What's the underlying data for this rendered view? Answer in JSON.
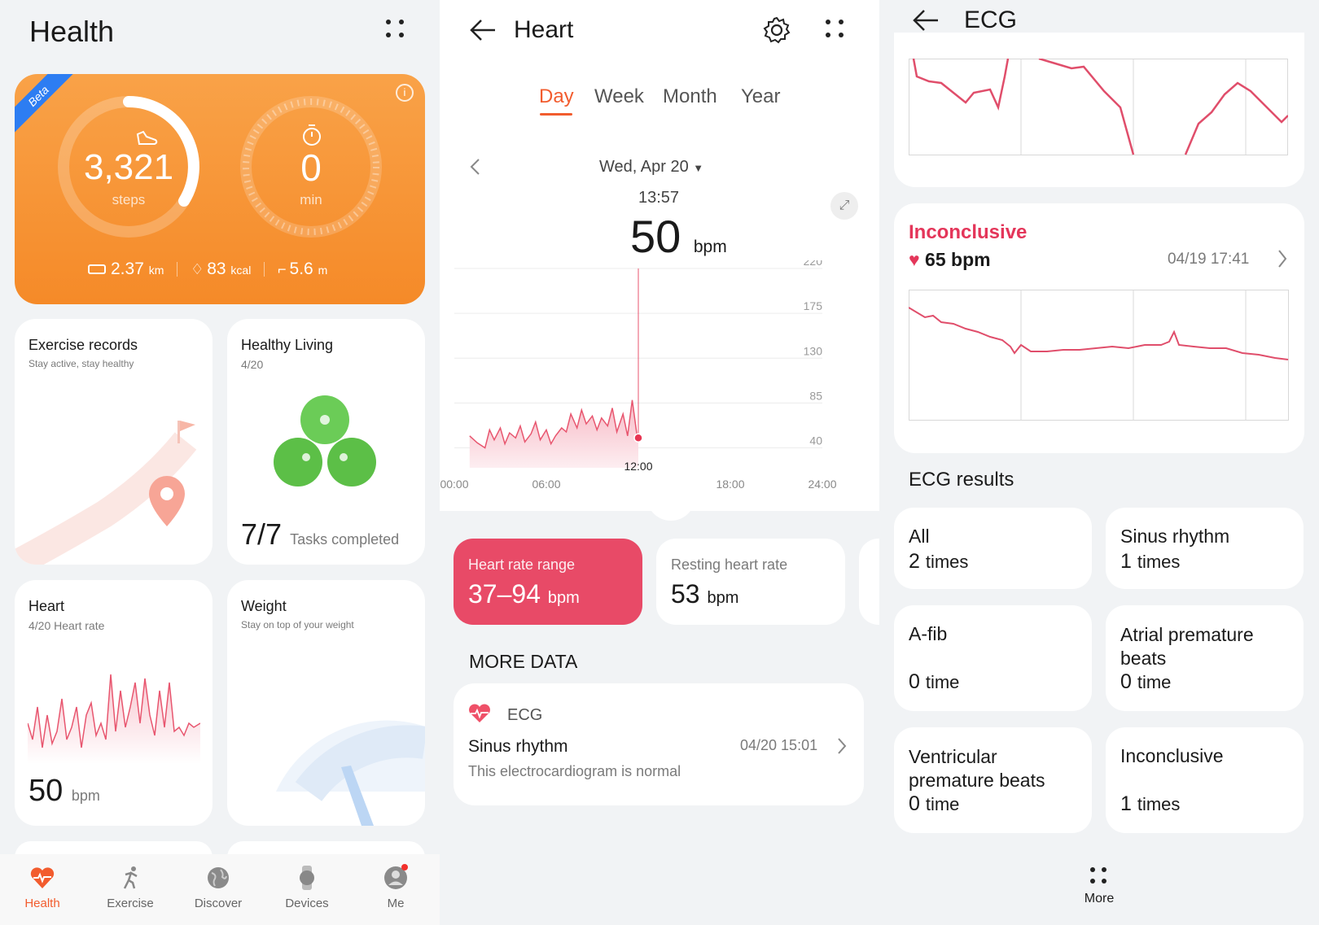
{
  "health": {
    "title": "Health",
    "beta": "Beta",
    "steps_value": "3,321",
    "steps_label": "steps",
    "min_value": "0",
    "min_label": "min",
    "distance_value": "2.37",
    "distance_unit": "km",
    "calories_value": "83",
    "calories_unit": "kcal",
    "floors_value": "5.6",
    "floors_unit": "m",
    "exercise_title": "Exercise records",
    "exercise_sub": "Stay active, stay healthy",
    "living_title": "Healthy Living",
    "living_date": "4/20",
    "tasks_value": "7/7",
    "tasks_label": "Tasks completed",
    "heart_title": "Heart",
    "heart_sub": "4/20 Heart rate",
    "heart_value": "50",
    "heart_unit": "bpm",
    "weight_title": "Weight",
    "weight_sub": "Stay on top of your weight",
    "nav": [
      {
        "label": "Health",
        "icon": "heart-icon"
      },
      {
        "label": "Exercise",
        "icon": "running-icon"
      },
      {
        "label": "Discover",
        "icon": "globe-icon"
      },
      {
        "label": "Devices",
        "icon": "watch-icon"
      },
      {
        "label": "Me",
        "icon": "profile-icon"
      }
    ],
    "accent": "#f7932b",
    "active_nav_color": "#f25c2e"
  },
  "heart": {
    "title": "Heart",
    "tabs": [
      "Day",
      "Week",
      "Month",
      "Year"
    ],
    "active_tab": "Day",
    "date": "Wed, Apr 20",
    "time": "13:57",
    "bpm_value": "50",
    "bpm_unit": "bpm",
    "range_title": "Heart rate range",
    "range_value": "37–94",
    "range_unit": "bpm",
    "resting_title": "Resting heart rate",
    "resting_value": "53",
    "resting_unit": "bpm",
    "more_data": "MORE DATA",
    "ecg_label": "ECG",
    "ecg_result": "Sinus rhythm",
    "ecg_date": "04/20 15:01",
    "ecg_desc": "This electrocardiogram is normal",
    "accent_red": "#e84a67"
  },
  "chart_data": {
    "type": "area",
    "y_ticks": [
      40,
      85,
      130,
      175,
      220
    ],
    "x_ticks": [
      "00:00",
      "06:00",
      "12:00",
      "18:00",
      "24:00"
    ],
    "ylim": [
      20,
      220
    ],
    "xlim": [
      0,
      24
    ],
    "highlight_label": "12:00",
    "x": [
      1,
      1.5,
      2,
      2.3,
      2.6,
      3,
      3.3,
      3.6,
      4,
      4.3,
      4.6,
      5,
      5.3,
      5.6,
      6,
      6.3,
      6.6,
      7,
      7.3,
      7.6,
      8,
      8.3,
      8.6,
      9,
      9.3,
      9.6,
      10,
      10.3,
      10.6,
      11,
      11.3,
      11.6,
      11.9,
      12
    ],
    "values": [
      52,
      45,
      40,
      58,
      48,
      60,
      44,
      55,
      50,
      62,
      46,
      54,
      66,
      48,
      58,
      44,
      52,
      60,
      56,
      74,
      60,
      78,
      64,
      72,
      58,
      70,
      62,
      80,
      56,
      74,
      52,
      88,
      54,
      50
    ]
  },
  "ecg": {
    "title": "ECG",
    "status": "Inconclusive",
    "bpm": "65 bpm",
    "date": "04/19 17:41",
    "results_title": "ECG results",
    "results": [
      {
        "name": "All",
        "count": "2",
        "unit": "times"
      },
      {
        "name": "Sinus rhythm",
        "count": "1",
        "unit": "times"
      },
      {
        "name": "A-fib",
        "count": "0",
        "unit": "time"
      },
      {
        "name": "Atrial premature beats",
        "count": "0",
        "unit": "time"
      },
      {
        "name": "Ventricular premature beats",
        "count": "0",
        "unit": "time"
      },
      {
        "name": "Inconclusive",
        "count": "1",
        "unit": "times"
      }
    ],
    "more": "More"
  }
}
